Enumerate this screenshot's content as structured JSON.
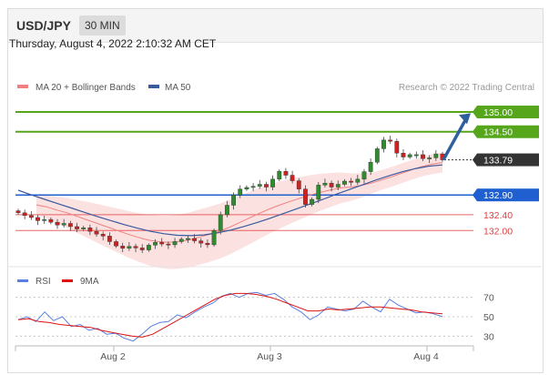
{
  "header": {
    "symbol": "USD/JPY",
    "timeframe": "30 MIN"
  },
  "datetime": "Thursday, August 4, 2022 2:10:32 AM CET",
  "legend": {
    "ma20": "MA 20 + Bollinger Bands",
    "ma50": "MA 50",
    "credit": "Research © 2022 Trading Central"
  },
  "rsi_legend": {
    "rsi": "RSI",
    "ma9": "9MA"
  },
  "colors": {
    "resistance": "#55a61a",
    "support_main": "#1f5fcf",
    "support_minor": "#e04040",
    "current": "#333333",
    "ma50": "#3a5a9e",
    "ma20": "#f08080",
    "band": "#fcdcdc",
    "candle_up": "#2e8b2e",
    "candle_down": "#cc2222",
    "rsi": "#5b7fe0",
    "rsi_ma": "#dd1111",
    "arrow": "#2f5f9e"
  },
  "chart_data": [
    {
      "type": "candlestick",
      "ylim": [
        131.5,
        135.3
      ],
      "x_ticks": [
        "Aug 2",
        "Aug 3",
        "Aug 4"
      ],
      "levels": [
        {
          "label": "135.00",
          "value": 135.0,
          "kind": "resistance"
        },
        {
          "label": "134.50",
          "value": 134.5,
          "kind": "resistance"
        },
        {
          "label": "133.79",
          "value": 133.79,
          "kind": "current"
        },
        {
          "label": "132.90",
          "value": 132.9,
          "kind": "support_main"
        },
        {
          "label": "132.40",
          "value": 132.4,
          "kind": "support_minor"
        },
        {
          "label": "132.00",
          "value": 132.0,
          "kind": "support_minor"
        }
      ],
      "series": [
        {
          "name": "USD/JPY",
          "close": [
            132.45,
            132.38,
            132.33,
            132.25,
            132.28,
            132.21,
            132.14,
            132.18,
            132.1,
            132.04,
            132.07,
            131.98,
            131.91,
            131.86,
            131.72,
            131.61,
            131.55,
            131.6,
            131.56,
            131.51,
            131.63,
            131.7,
            131.66,
            131.64,
            131.72,
            131.78,
            131.8,
            131.74,
            131.68,
            131.64,
            132.0,
            132.4,
            132.64,
            132.9,
            133.05,
            133.09,
            133.12,
            133.17,
            133.1,
            133.3,
            133.5,
            133.4,
            133.26,
            133.05,
            132.66,
            132.79,
            133.15,
            133.2,
            133.1,
            133.17,
            133.25,
            133.22,
            133.3,
            133.49,
            133.73,
            134.07,
            134.29,
            134.26,
            133.96,
            133.86,
            133.92,
            133.92,
            133.82,
            133.84,
            133.94,
            133.79
          ]
        },
        {
          "name": "MA 20",
          "values": [
            132.65,
            132.6,
            132.52,
            132.45,
            132.36,
            132.27,
            132.18,
            132.09,
            132.0,
            131.91,
            131.83,
            131.76,
            131.72,
            131.7,
            131.72,
            131.76,
            131.83,
            131.9,
            131.98,
            132.08,
            132.2,
            132.32,
            132.44,
            132.55,
            132.65,
            132.74,
            132.82,
            132.9,
            132.97,
            133.03,
            133.08,
            133.1,
            133.14,
            133.2,
            133.28,
            133.36,
            133.45,
            133.54,
            133.62,
            133.68,
            133.72
          ]
        },
        {
          "name": "MA 50",
          "values": [
            133.02,
            132.9,
            132.79,
            132.68,
            132.57,
            132.46,
            132.35,
            132.25,
            132.15,
            132.06,
            131.98,
            131.92,
            131.88,
            131.87,
            131.89,
            131.94,
            132.01,
            132.1,
            132.2,
            132.31,
            132.43,
            132.55,
            132.67,
            132.79,
            132.92,
            133.04,
            133.16,
            133.28,
            133.39,
            133.49,
            133.57,
            133.63,
            133.66
          ]
        }
      ]
    },
    {
      "type": "line",
      "ylim": [
        20,
        80
      ],
      "y_ticks": [
        "70",
        "50",
        "30"
      ],
      "series": [
        {
          "name": "RSI",
          "values": [
            47,
            50,
            45,
            55,
            46,
            50,
            40,
            42,
            36,
            38,
            32,
            33,
            28,
            25,
            32,
            40,
            44,
            45,
            52,
            49,
            55,
            60,
            64,
            71,
            74,
            70,
            74,
            75,
            72,
            74,
            68,
            60,
            55,
            47,
            52,
            60,
            58,
            56,
            58,
            66,
            60,
            55,
            68,
            62,
            58,
            54,
            55,
            53,
            50
          ]
        },
        {
          "name": "9MA",
          "values": [
            47,
            48,
            45,
            44,
            42,
            41,
            40,
            39,
            36,
            34,
            32,
            30,
            29,
            32,
            38,
            44,
            50,
            56,
            62,
            68,
            72,
            74,
            74,
            73,
            71,
            68,
            64,
            60,
            56,
            56,
            58,
            57,
            58,
            59,
            60,
            60,
            59,
            58,
            57,
            55,
            54,
            53
          ]
        }
      ]
    }
  ]
}
